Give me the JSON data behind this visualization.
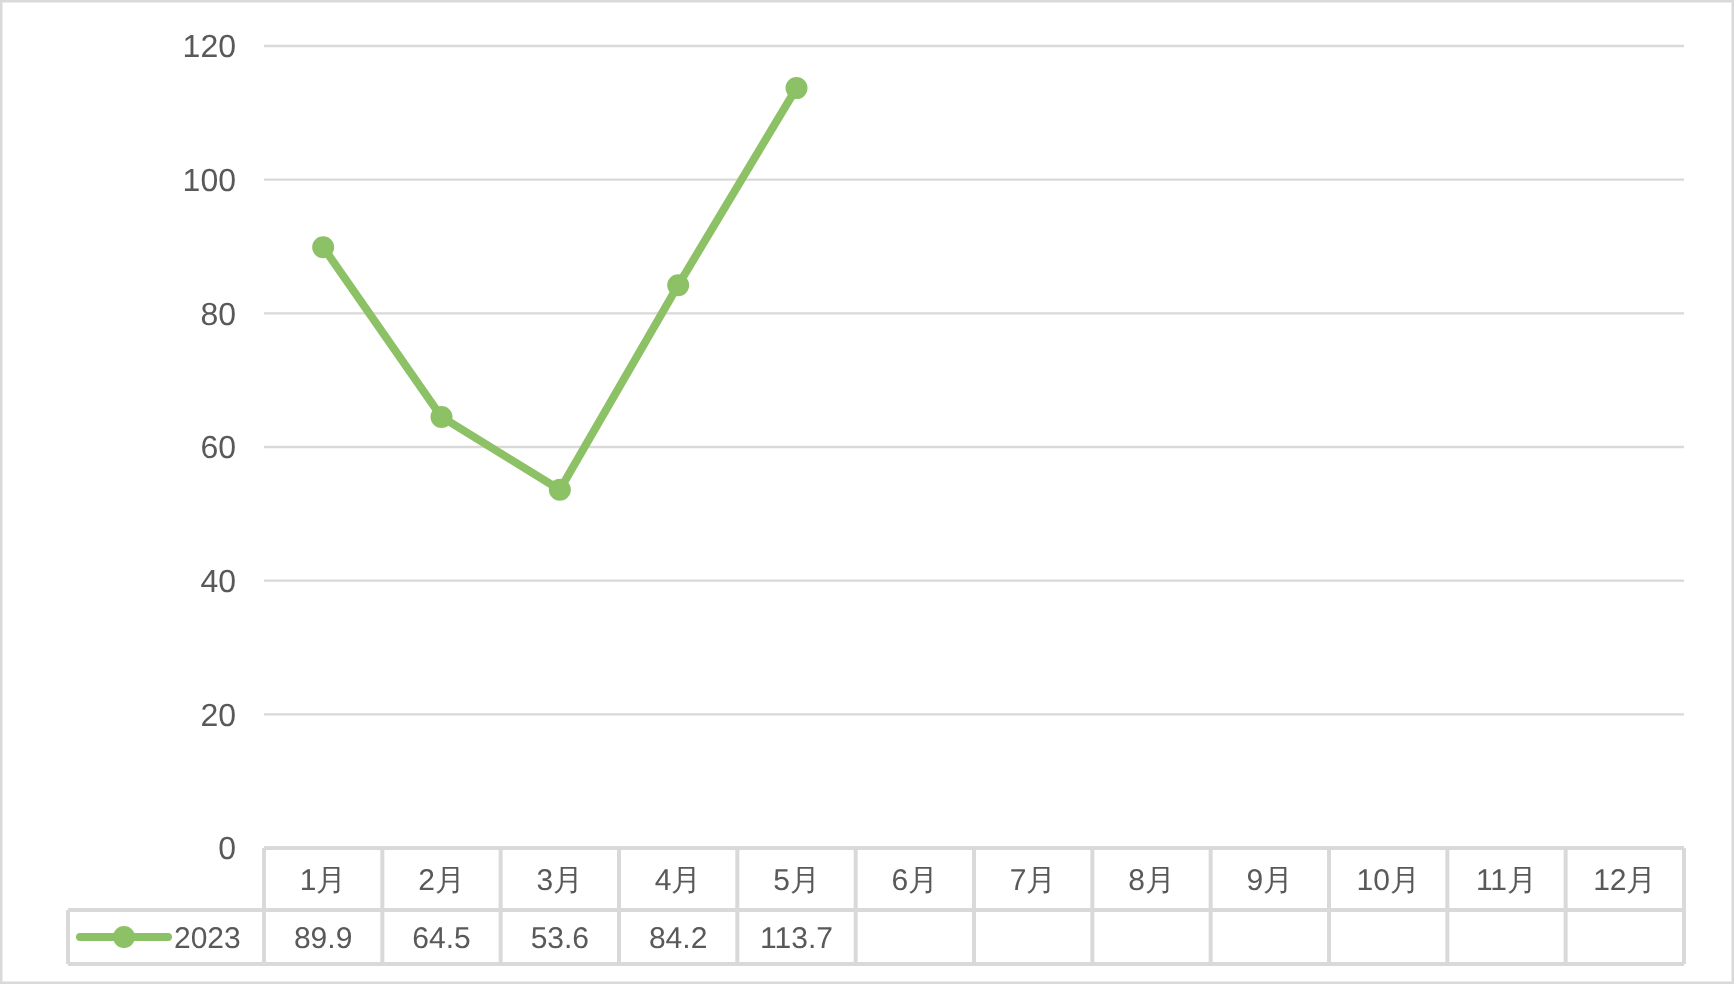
{
  "chart_data": {
    "type": "line",
    "categories": [
      "1月",
      "2月",
      "3月",
      "4月",
      "5月",
      "6月",
      "7月",
      "8月",
      "9月",
      "10月",
      "11月",
      "12月"
    ],
    "series": [
      {
        "name": "2023",
        "color": "#8cc165",
        "values": [
          89.9,
          64.5,
          53.6,
          84.2,
          113.7,
          null,
          null,
          null,
          null,
          null,
          null,
          null
        ]
      }
    ],
    "ylim": [
      0,
      120
    ],
    "yticks": [
      0,
      20,
      40,
      60,
      80,
      100,
      120
    ],
    "grid": "y",
    "marker": "circle",
    "line_style": "solid",
    "data_labels": true,
    "legend": "bottom left"
  }
}
